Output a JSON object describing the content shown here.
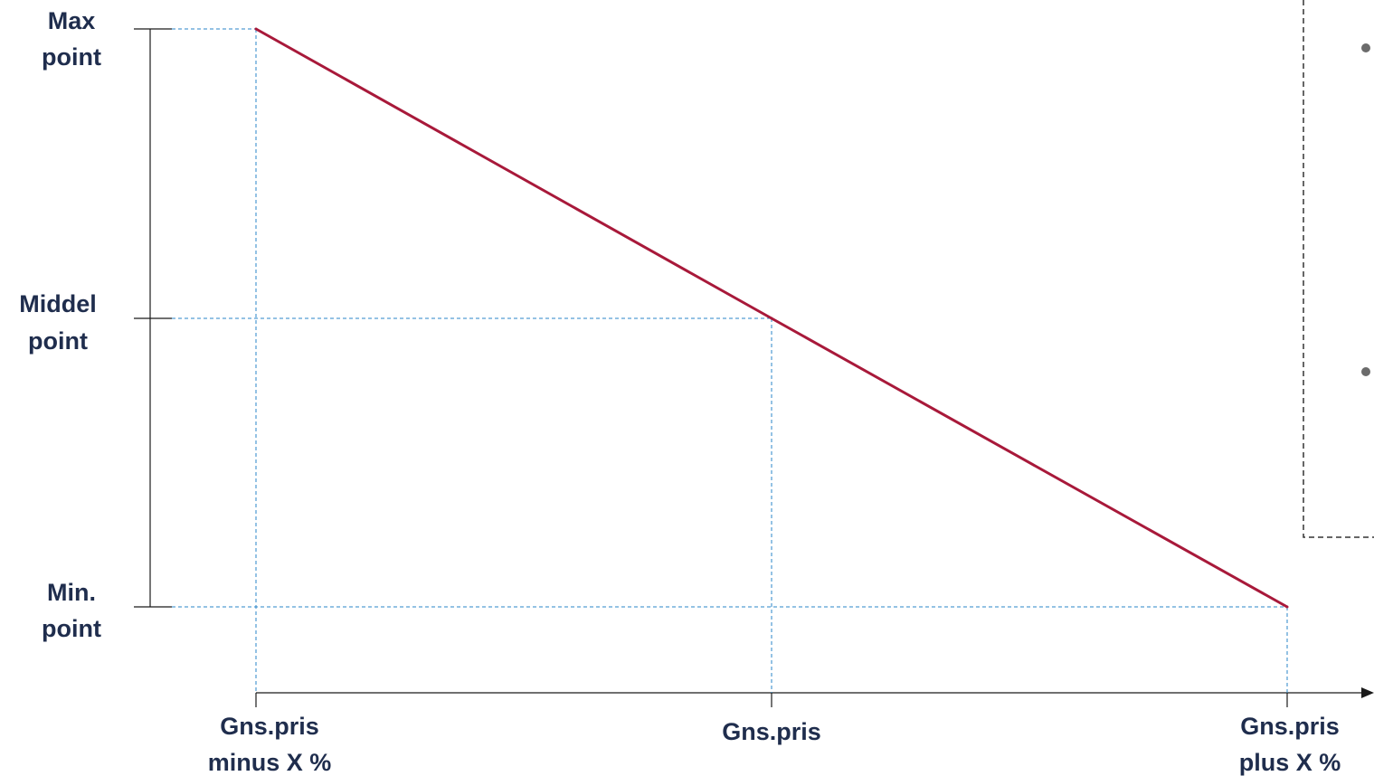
{
  "chart_data": {
    "type": "line",
    "categories": [
      "Gns.pris minus X %",
      "Gns.pris",
      "Gns.pris plus X %"
    ],
    "x_labels": [
      [
        "Gns.pris",
        "minus X %"
      ],
      [
        "Gns.pris"
      ],
      [
        "Gns.pris",
        "plus X %"
      ]
    ],
    "y_labels": [
      [
        "Max",
        "point"
      ],
      [
        "Middel",
        "point"
      ],
      [
        "Min.",
        "point"
      ]
    ],
    "y_levels": [
      "max",
      "middle",
      "min"
    ],
    "series": [
      {
        "values": [
          "max",
          "middle",
          "min"
        ]
      }
    ],
    "guide_lines": true,
    "colors": {
      "line": "#a8193a",
      "guide": "#2a86c8",
      "axis": "#1a1a1a",
      "label": "#1f2d4d",
      "box_border": "#333333",
      "bullet": "#6b6b6b"
    }
  },
  "side_panel": {
    "bullet_count": 2
  }
}
